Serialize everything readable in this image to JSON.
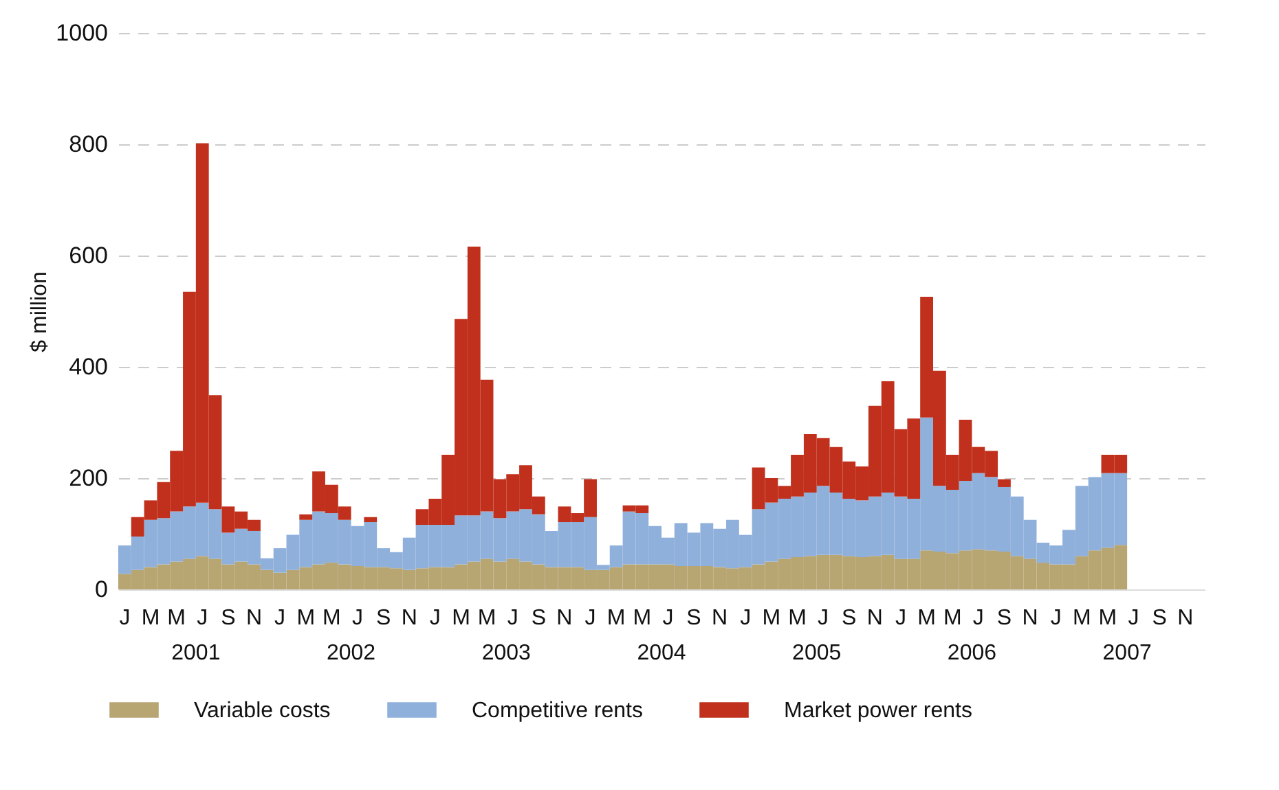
{
  "chart_data": {
    "type": "bar",
    "stacked": true,
    "ylabel": "$ million",
    "categories": [
      "J",
      null,
      "M",
      null,
      "M",
      null,
      "J",
      null,
      "S",
      null,
      "N",
      null,
      "J",
      null,
      "M",
      null,
      "M",
      null,
      "J",
      null,
      "S",
      null,
      "N",
      null,
      "J",
      null,
      "M",
      null,
      "M",
      null,
      "J",
      null,
      "S",
      null,
      "N",
      null,
      "J",
      null,
      "M",
      null,
      "M",
      null,
      "J",
      null,
      "S",
      null,
      "N",
      null,
      "J",
      null,
      "M",
      null,
      "M",
      null,
      "J",
      null,
      "S",
      null,
      "N",
      null,
      "J",
      null,
      "M",
      null,
      "M",
      null,
      "J",
      null,
      "S",
      null,
      "N",
      null,
      "J",
      null,
      "M",
      null,
      "M",
      null,
      "J",
      null,
      "S",
      null,
      "N",
      null
    ],
    "series": [
      {
        "name": "Variable costs",
        "color": "#b7a572",
        "values": [
          28,
          35,
          40,
          45,
          50,
          55,
          60,
          55,
          45,
          50,
          45,
          35,
          30,
          35,
          40,
          45,
          48,
          45,
          42,
          40,
          40,
          38,
          35,
          38,
          40,
          40,
          45,
          50,
          55,
          50,
          55,
          50,
          45,
          40,
          40,
          40,
          35,
          35,
          40,
          45,
          45,
          45,
          45,
          42,
          42,
          42,
          40,
          38,
          40,
          45,
          50,
          55,
          58,
          60,
          62,
          62,
          60,
          58,
          60,
          62,
          55,
          55,
          70,
          68,
          65,
          70,
          72,
          70,
          68,
          60,
          55,
          48,
          45,
          45,
          60,
          70,
          75,
          80,
          null,
          null,
          null,
          null,
          null,
          null
        ]
      },
      {
        "name": "Competitive rents",
        "color": "#8fb0db",
        "values": [
          51,
          60,
          85,
          83,
          90,
          94,
          96,
          89,
          57,
          59,
          60,
          21,
          44,
          63,
          85,
          95,
          89,
          80,
          72,
          81,
          34,
          29,
          58,
          78,
          76,
          76,
          88,
          83,
          85,
          78,
          85,
          94,
          90,
          65,
          81,
          81,
          95,
          9,
          39,
          95,
          92,
          69,
          48,
          77,
          60,
          77,
          69,
          87,
          58,
          99,
          106,
          108,
          109,
          114,
          124,
          112,
          103,
          102,
          107,
          112,
          112,
          108,
          239,
          118,
          114,
          125,
          137,
          132,
          116,
          107,
          70,
          36,
          34,
          62,
          126,
          132,
          134,
          129,
          null,
          null,
          null,
          null,
          null,
          null
        ]
      },
      {
        "name": "Market power rents",
        "color": "#c0301c",
        "values": [
          null,
          35,
          35,
          65,
          109,
          386,
          646,
          205,
          47,
          31,
          20,
          null,
          null,
          null,
          10,
          72,
          51,
          24,
          null,
          9,
          null,
          null,
          null,
          28,
          47,
          126,
          353,
          483,
          237,
          70,
          67,
          79,
          32,
          null,
          28,
          16,
          68,
          null,
          null,
          11,
          14,
          null,
          null,
          null,
          null,
          null,
          null,
          null,
          null,
          75,
          44,
          23,
          75,
          105,
          86,
          82,
          67,
          61,
          163,
          200,
          121,
          144,
          217,
          207,
          63,
          110,
          47,
          47,
          14,
          null,
          null,
          null,
          null,
          null,
          null,
          null,
          33,
          33,
          null,
          null,
          null,
          null,
          null,
          null
        ]
      }
    ],
    "annotations": [
      "2001",
      "2002",
      "2003",
      "2004",
      "2005",
      "2006",
      "2007"
    ],
    "ylim": [
      0,
      1000
    ],
    "yticks": [
      0,
      200,
      400,
      600,
      800,
      1000
    ],
    "grid": "y",
    "legend": "bottom"
  }
}
